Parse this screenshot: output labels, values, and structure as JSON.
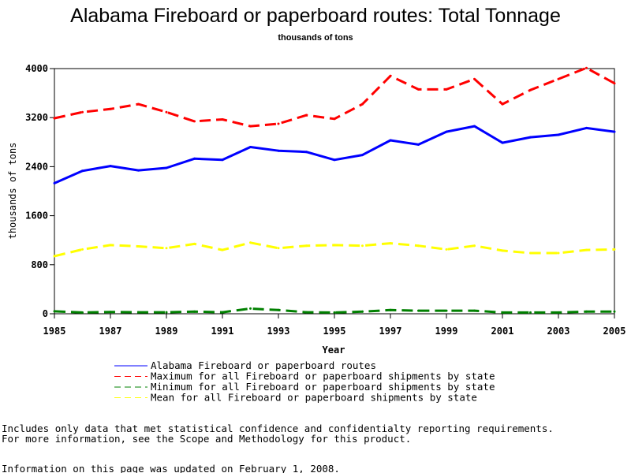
{
  "chart_data": {
    "type": "line",
    "title": "Alabama Fireboard or paperboard routes: Total Tonnage",
    "subtitle": "thousands of tons",
    "xlabel": "Year",
    "ylabel": "thousands of tons",
    "xlim": [
      1985,
      2005
    ],
    "ylim": [
      0,
      4000
    ],
    "x": [
      1985,
      1986,
      1987,
      1988,
      1989,
      1990,
      1991,
      1992,
      1993,
      1994,
      1995,
      1996,
      1997,
      1998,
      1999,
      2000,
      2001,
      2002,
      2003,
      2004,
      2005
    ],
    "x_ticks": [
      1985,
      1987,
      1989,
      1991,
      1993,
      1995,
      1997,
      1999,
      2001,
      2003,
      2005
    ],
    "y_ticks": [
      0,
      800,
      1600,
      2400,
      3200,
      4000
    ],
    "grid": false,
    "legend_position": "bottom",
    "series": [
      {
        "name": "Alabama Fireboard or paperboard routes",
        "color": "#0000ff",
        "style": "solid",
        "values": [
          2130,
          2330,
          2410,
          2340,
          2380,
          2530,
          2510,
          2720,
          2660,
          2640,
          2510,
          2590,
          2830,
          2760,
          2970,
          3060,
          2790,
          2880,
          2920,
          3030,
          2970
        ]
      },
      {
        "name": "Maximum for all Fireboard or paperboard shipments by state",
        "color": "#ff0000",
        "style": "dashed",
        "values": [
          3190,
          3290,
          3340,
          3420,
          3290,
          3140,
          3170,
          3060,
          3100,
          3240,
          3180,
          3420,
          3880,
          3660,
          3660,
          3830,
          3420,
          3650,
          3830,
          4010,
          3760
        ]
      },
      {
        "name": "Minimum for all Fireboard or paperboard shipments by state",
        "color": "#008000",
        "style": "dashed",
        "values": [
          40,
          20,
          30,
          25,
          25,
          35,
          25,
          85,
          60,
          25,
          20,
          35,
          60,
          50,
          50,
          50,
          20,
          20,
          20,
          35,
          35
        ]
      },
      {
        "name": "Mean for all Fireboard or paperboard shipments by state",
        "color": "#ffff00",
        "style": "dashed",
        "values": [
          940,
          1050,
          1120,
          1100,
          1070,
          1140,
          1040,
          1160,
          1070,
          1110,
          1120,
          1110,
          1150,
          1110,
          1050,
          1110,
          1030,
          990,
          990,
          1040,
          1050
        ]
      }
    ]
  },
  "notes": {
    "line1": "Includes only data that met statistical confidence and confidentialty reporting requirements.",
    "line2": "For more information, see the Scope and Methodology for this product.",
    "line3": "Information on this page was updated on February 1, 2008."
  }
}
